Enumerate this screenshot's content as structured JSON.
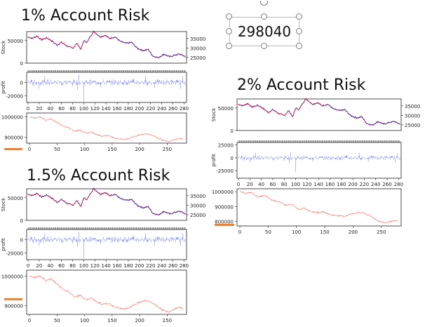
{
  "textbox": {
    "value": "298040"
  },
  "chart_data": [
    {
      "title": "1% Account Risk",
      "panels": [
        {
          "type": "line",
          "ylabel": "Stock",
          "yticks_left": [
            "50000",
            "0"
          ],
          "yticks_right": [
            "35000",
            "30000",
            "25000"
          ],
          "ylim": [
            0,
            70000
          ]
        },
        {
          "type": "bar",
          "ylabel": "profit",
          "yticks": [
            "0",
            "-20000"
          ],
          "ylim": [
            -30000,
            15000
          ],
          "xticks": [
            "0",
            "20",
            "40",
            "60",
            "80",
            "100",
            "120",
            "140",
            "160",
            "180",
            "200",
            "220",
            "240",
            "260",
            "280"
          ]
        },
        {
          "type": "line",
          "yticks": [
            "1000000",
            "900000"
          ],
          "xticks": [
            "0",
            "50",
            "100",
            "150",
            "200",
            "250"
          ],
          "ylim": [
            870000,
            1020000
          ]
        }
      ]
    },
    {
      "title": "2% Account Risk",
      "panels": [
        {
          "type": "line",
          "ylabel": "Stock",
          "yticks_left": [
            "50000",
            "0"
          ],
          "yticks_right": [
            "35000",
            "30000",
            "25000"
          ],
          "ylim": [
            0,
            70000
          ]
        },
        {
          "type": "bar",
          "ylabel": "profit",
          "yticks": [
            "25000",
            "0",
            "-25000"
          ],
          "ylim": [
            -40000,
            30000
          ],
          "xticks": [
            "0",
            "20",
            "40",
            "60",
            "80",
            "100",
            "120",
            "140",
            "160",
            "180",
            "200",
            "220",
            "240",
            "260",
            "280"
          ]
        },
        {
          "type": "line",
          "yticks": [
            "1000000",
            "900000",
            "800000"
          ],
          "xticks": [
            "0",
            "50",
            "100",
            "150",
            "200",
            "250"
          ],
          "ylim": [
            770000,
            1020000
          ]
        }
      ]
    },
    {
      "title": "1.5% Account Risk",
      "panels": [
        {
          "type": "line",
          "ylabel": "Stock",
          "yticks_left": [
            "50000",
            "0"
          ],
          "yticks_right": [
            "35000",
            "30000",
            "25000"
          ],
          "ylim": [
            0,
            70000
          ]
        },
        {
          "type": "bar",
          "ylabel": "profit",
          "yticks": [
            "0",
            "-20000"
          ],
          "ylim": [
            -30000,
            15000
          ],
          "xticks": [
            "0",
            "20",
            "40",
            "60",
            "80",
            "100",
            "120",
            "140",
            "160",
            "180",
            "200",
            "220",
            "240",
            "260",
            "280"
          ]
        },
        {
          "type": "line",
          "yticks": [
            "1000000",
            "900000"
          ],
          "xticks": [
            "0",
            "50",
            "100",
            "150",
            "200",
            "250"
          ],
          "ylim": [
            870000,
            1020000
          ]
        }
      ]
    }
  ],
  "series": {
    "stock_knots": [
      [
        0,
        58000
      ],
      [
        8,
        55000
      ],
      [
        16,
        60000
      ],
      [
        24,
        52000
      ],
      [
        34,
        56000
      ],
      [
        44,
        48000
      ],
      [
        52,
        40000
      ],
      [
        60,
        46000
      ],
      [
        70,
        38000
      ],
      [
        80,
        33000
      ],
      [
        88,
        44000
      ],
      [
        95,
        30000
      ],
      [
        100,
        50000
      ],
      [
        106,
        46000
      ],
      [
        112,
        60000
      ],
      [
        118,
        70000
      ],
      [
        124,
        64000
      ],
      [
        130,
        58000
      ],
      [
        138,
        62000
      ],
      [
        146,
        55000
      ],
      [
        156,
        58000
      ],
      [
        166,
        48000
      ],
      [
        176,
        44000
      ],
      [
        186,
        46000
      ],
      [
        196,
        33000
      ],
      [
        206,
        28000
      ],
      [
        216,
        30000
      ],
      [
        224,
        16000
      ],
      [
        234,
        12000
      ],
      [
        244,
        20000
      ],
      [
        254,
        14000
      ],
      [
        264,
        18000
      ],
      [
        272,
        20000
      ],
      [
        282,
        15000
      ]
    ],
    "equity_knots": [
      [
        0,
        1000000
      ],
      [
        10,
        995000
      ],
      [
        20,
        1000000
      ],
      [
        30,
        985000
      ],
      [
        40,
        990000
      ],
      [
        52,
        970000
      ],
      [
        62,
        955000
      ],
      [
        72,
        945000
      ],
      [
        82,
        930000
      ],
      [
        92,
        935000
      ],
      [
        102,
        920000
      ],
      [
        112,
        925000
      ],
      [
        122,
        912000
      ],
      [
        132,
        905000
      ],
      [
        142,
        908000
      ],
      [
        152,
        898000
      ],
      [
        162,
        892000
      ],
      [
        172,
        888000
      ],
      [
        182,
        895000
      ],
      [
        192,
        905000
      ],
      [
        202,
        912000
      ],
      [
        212,
        918000
      ],
      [
        222,
        910000
      ],
      [
        232,
        898000
      ],
      [
        242,
        885000
      ],
      [
        252,
        878000
      ],
      [
        262,
        888000
      ],
      [
        272,
        895000
      ],
      [
        278,
        890000
      ]
    ],
    "equity_knots_2pct": [
      [
        0,
        1000000
      ],
      [
        10,
        990000
      ],
      [
        20,
        995000
      ],
      [
        32,
        965000
      ],
      [
        44,
        975000
      ],
      [
        56,
        945000
      ],
      [
        68,
        935000
      ],
      [
        80,
        910000
      ],
      [
        92,
        915000
      ],
      [
        104,
        880000
      ],
      [
        114,
        890000
      ],
      [
        124,
        870000
      ],
      [
        136,
        860000
      ],
      [
        148,
        865000
      ],
      [
        160,
        845000
      ],
      [
        172,
        840000
      ],
      [
        184,
        835000
      ],
      [
        196,
        850000
      ],
      [
        208,
        860000
      ],
      [
        220,
        855000
      ],
      [
        232,
        835000
      ],
      [
        244,
        805000
      ],
      [
        256,
        790000
      ],
      [
        266,
        800000
      ],
      [
        278,
        805000
      ]
    ]
  }
}
